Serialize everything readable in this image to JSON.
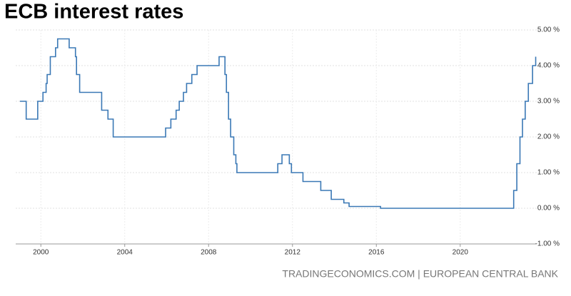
{
  "chart_data": {
    "type": "line",
    "title": "ECB interest rates",
    "source": "TRADINGECONOMICS.COM | EUROPEAN CENTRAL BANK",
    "xlim": [
      1998.8,
      2023.65
    ],
    "xticks": [
      2000,
      2004,
      2008,
      2012,
      2016,
      2020
    ],
    "ylim": [
      -1,
      5
    ],
    "yticks": [
      {
        "value": -1,
        "label": "-1.00 %"
      },
      {
        "value": 0,
        "label": "0.00 %"
      },
      {
        "value": 1,
        "label": "1.00 %"
      },
      {
        "value": 2,
        "label": "2.00 %"
      },
      {
        "value": 3,
        "label": "3.00 %"
      },
      {
        "value": 4,
        "label": "4.00 %"
      },
      {
        "value": 5,
        "label": "5.00 %"
      }
    ],
    "grid": true,
    "series": [
      {
        "color": "#3a78b5",
        "x": [
          1999.0,
          1999.3,
          1999.3,
          1999.85,
          1999.85,
          2000.1,
          2000.1,
          2000.25,
          2000.25,
          2000.3,
          2000.3,
          2000.45,
          2000.45,
          2000.7,
          2000.7,
          2000.8,
          2000.8,
          2001.35,
          2001.35,
          2001.65,
          2001.65,
          2001.7,
          2001.7,
          2001.85,
          2001.85,
          2002.9,
          2002.9,
          2003.2,
          2003.2,
          2003.45,
          2003.45,
          2005.95,
          2005.95,
          2006.2,
          2006.2,
          2006.45,
          2006.45,
          2006.6,
          2006.6,
          2006.8,
          2006.8,
          2006.95,
          2006.95,
          2007.2,
          2007.2,
          2007.45,
          2007.45,
          2008.5,
          2008.5,
          2008.78,
          2008.78,
          2008.85,
          2008.85,
          2008.95,
          2008.95,
          2009.05,
          2009.05,
          2009.2,
          2009.2,
          2009.3,
          2009.3,
          2009.35,
          2009.35,
          2011.3,
          2011.3,
          2011.5,
          2011.5,
          2011.85,
          2011.85,
          2011.95,
          2011.95,
          2012.5,
          2012.5,
          2013.35,
          2013.35,
          2013.85,
          2013.85,
          2014.45,
          2014.45,
          2014.7,
          2014.7,
          2016.2,
          2016.2,
          2022.55,
          2022.55,
          2022.7,
          2022.7,
          2022.85,
          2022.85,
          2022.97,
          2022.97,
          2023.1,
          2023.1,
          2023.25,
          2023.25,
          2023.45,
          2023.45,
          2023.6,
          2023.6
        ],
        "values": [
          3.0,
          3.0,
          2.5,
          2.5,
          3.0,
          3.0,
          3.25,
          3.25,
          3.5,
          3.5,
          3.75,
          3.75,
          4.25,
          4.25,
          4.5,
          4.5,
          4.75,
          4.75,
          4.5,
          4.5,
          4.25,
          4.25,
          3.75,
          3.75,
          3.25,
          3.25,
          2.75,
          2.75,
          2.5,
          2.5,
          2.0,
          2.0,
          2.25,
          2.25,
          2.5,
          2.5,
          2.75,
          2.75,
          3.0,
          3.0,
          3.25,
          3.25,
          3.5,
          3.5,
          3.75,
          3.75,
          4.0,
          4.0,
          4.25,
          4.25,
          3.75,
          3.75,
          3.25,
          3.25,
          2.5,
          2.5,
          2.0,
          2.0,
          1.5,
          1.5,
          1.25,
          1.25,
          1.0,
          1.0,
          1.25,
          1.25,
          1.5,
          1.5,
          1.25,
          1.25,
          1.0,
          1.0,
          0.75,
          0.75,
          0.5,
          0.5,
          0.25,
          0.25,
          0.15,
          0.15,
          0.05,
          0.05,
          0.0,
          0.0,
          0.5,
          0.5,
          1.25,
          1.25,
          2.0,
          2.0,
          2.5,
          2.5,
          3.0,
          3.0,
          3.5,
          3.5,
          4.0,
          4.0,
          4.25
        ]
      }
    ]
  }
}
